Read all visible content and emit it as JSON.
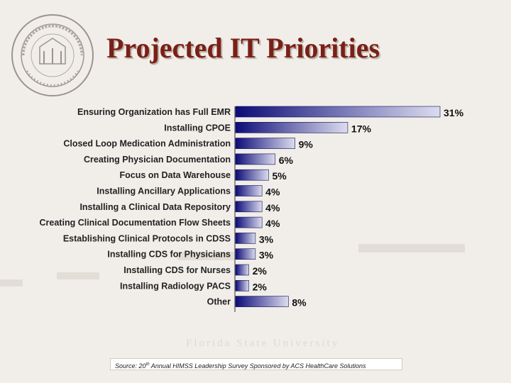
{
  "slide": {
    "title": "Projected IT Priorities",
    "seal_text": [
      "FLORIDA STATE UNIVERSITY",
      "1851"
    ],
    "wordmark": "Florida State University",
    "source_parts": [
      "Source: 20",
      "th",
      " Annual HIMSS Leadership Survey Sponsored by ACS HealthCare Solutions"
    ]
  },
  "colors": {
    "title": "#7a1f17",
    "bar_dark": "#0c0c78",
    "bar_light": "#dcdcef",
    "text": "#111111"
  },
  "chart_data": {
    "type": "bar",
    "orientation": "horizontal",
    "title": "",
    "xlabel": "",
    "ylabel": "",
    "xlim": [
      0,
      31
    ],
    "grid": false,
    "legend": "none",
    "categories": [
      "Ensuring Organization has Full EMR",
      "Installing CPOE",
      "Closed Loop Medication Administration",
      "Creating Physician Documentation",
      "Focus on Data Warehouse",
      "Installing Ancillary Applications",
      "Installing a Clinical Data Repository",
      "Creating Clinical Documentation Flow Sheets",
      "Establishing Clinical Protocols in CDSS",
      "Installing CDS for Physicians",
      "Installing CDS for Nurses",
      "Installing Radiology PACS",
      "Other"
    ],
    "values": [
      31,
      17,
      9,
      6,
      5,
      4,
      4,
      4,
      3,
      3,
      2,
      2,
      8
    ],
    "value_labels": [
      "31%",
      "17%",
      "9%",
      "6%",
      "5%",
      "4%",
      "4%",
      "4%",
      "3%",
      "3%",
      "2%",
      "2%",
      "8%"
    ]
  }
}
